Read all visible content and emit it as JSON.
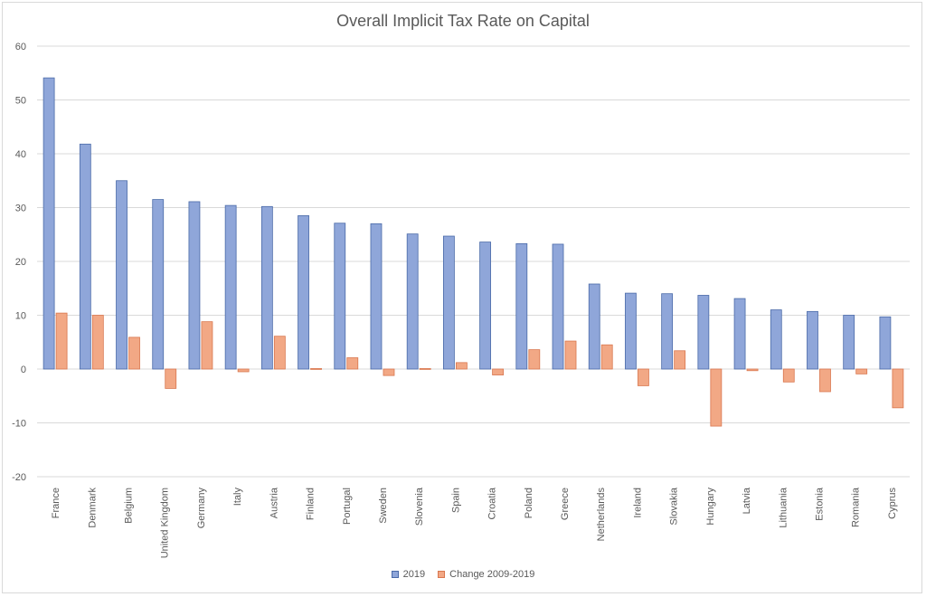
{
  "chart_data": {
    "type": "bar",
    "title": "Overall Implicit Tax Rate on Capital",
    "xlabel": "",
    "ylabel": "",
    "ylim": [
      -20,
      60
    ],
    "yticks": [
      60,
      50,
      40,
      30,
      20,
      10,
      0,
      -10,
      -20
    ],
    "grid": true,
    "legend_position": "bottom",
    "categories": [
      "France",
      "Denmark",
      "Belgium",
      "United Kingdom",
      "Germany",
      "Italy",
      "Austria",
      "Finland",
      "Portugal",
      "Sweden",
      "Slovenia",
      "Spain",
      "Croatia",
      "Poland",
      "Greece",
      "Netherlands",
      "Ireland",
      "Slovakia",
      "Hungary",
      "Latvia",
      "Lithuania",
      "Estonia",
      "Romania",
      "Cyprus"
    ],
    "series": [
      {
        "name": "2019",
        "color": "#8fa6d9",
        "border": "#4a6aa8",
        "values": [
          54.1,
          41.8,
          35.0,
          31.5,
          31.1,
          30.4,
          30.2,
          28.5,
          27.1,
          27.0,
          25.1,
          24.7,
          23.6,
          23.3,
          23.2,
          15.8,
          14.1,
          14.0,
          13.7,
          13.1,
          11.0,
          10.7,
          10.0,
          9.7
        ]
      },
      {
        "name": "Change 2009-2019",
        "color": "#f2a885",
        "border": "#d9774f",
        "values": [
          10.4,
          10.0,
          5.9,
          -3.6,
          8.8,
          -0.5,
          6.1,
          0.1,
          2.1,
          -1.2,
          0.1,
          1.2,
          -1.1,
          3.6,
          5.2,
          4.5,
          -3.1,
          3.4,
          -10.6,
          -0.3,
          -2.4,
          -4.2,
          -0.9,
          -7.2
        ]
      }
    ]
  }
}
